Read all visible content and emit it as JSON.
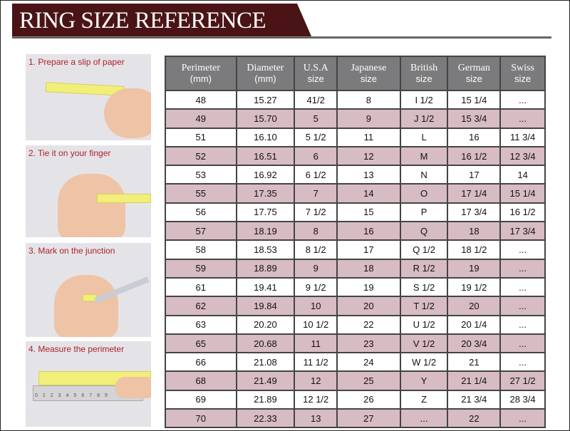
{
  "title": "RING SIZE REFERENCE",
  "steps": [
    "1. Prepare a slip of paper",
    "2. Tie it on your finger",
    "3. Mark on the junction",
    "4. Measure the perimeter"
  ],
  "ruler_digits": "0123456789",
  "colors": {
    "banner": "#4a1416",
    "header": "#7b7b7d",
    "row_alt": "#d8bcc3",
    "step_text": "#b0202a"
  },
  "table": {
    "headers": [
      [
        "Perimeter",
        "(mm)"
      ],
      [
        "Diameter",
        "(mm)"
      ],
      [
        "U.S.A",
        "size"
      ],
      [
        "Japanese",
        "size"
      ],
      [
        "British",
        "size"
      ],
      [
        "German",
        "size"
      ],
      [
        "Swiss",
        "size"
      ]
    ],
    "rows": [
      [
        "48",
        "15.27",
        "41/2",
        "8",
        "I 1/2",
        "15 1/4",
        "..."
      ],
      [
        "49",
        "15.70",
        "5",
        "9",
        "J 1/2",
        "15 3/4",
        "..."
      ],
      [
        "51",
        "16.10",
        "5 1/2",
        "11",
        "L",
        "16",
        "11 3/4"
      ],
      [
        "52",
        "16.51",
        "6",
        "12",
        "M",
        "16 1/2",
        "12 3/4"
      ],
      [
        "53",
        "16.92",
        "6 1/2",
        "13",
        "N",
        "17",
        "14"
      ],
      [
        "55",
        "17.35",
        "7",
        "14",
        "O",
        "17 1/4",
        "15 1/4"
      ],
      [
        "56",
        "17.75",
        "7 1/2",
        "15",
        "P",
        "17 3/4",
        "16 1/2"
      ],
      [
        "57",
        "18.19",
        "8",
        "16",
        "Q",
        "18",
        "17 3/4"
      ],
      [
        "58",
        "18.53",
        "8 1/2",
        "17",
        "Q  1/2",
        "18 1/2",
        "..."
      ],
      [
        "59",
        "18.89",
        "9",
        "18",
        "R 1/2",
        "19",
        "..."
      ],
      [
        "61",
        "19.41",
        "9 1/2",
        "19",
        "S 1/2",
        "19 1/2",
        "..."
      ],
      [
        "62",
        "19.84",
        "10",
        "20",
        "T 1/2",
        "20",
        "..."
      ],
      [
        "63",
        "20.20",
        "10 1/2",
        "22",
        "U 1/2",
        "20 1/4",
        "..."
      ],
      [
        "65",
        "20.68",
        "11",
        "23",
        "V 1/2",
        "20 3/4",
        "..."
      ],
      [
        "66",
        "21.08",
        "11 1/2",
        "24",
        "W 1/2",
        "21",
        "..."
      ],
      [
        "68",
        "21.49",
        "12",
        "25",
        "Y",
        "21 1/4",
        "27 1/2"
      ],
      [
        "69",
        "21.89",
        "12 1/2",
        "26",
        "Z",
        "21 3/4",
        "28 3/4"
      ],
      [
        "70",
        "22.33",
        "13",
        "27",
        "...",
        "22",
        "..."
      ]
    ]
  }
}
